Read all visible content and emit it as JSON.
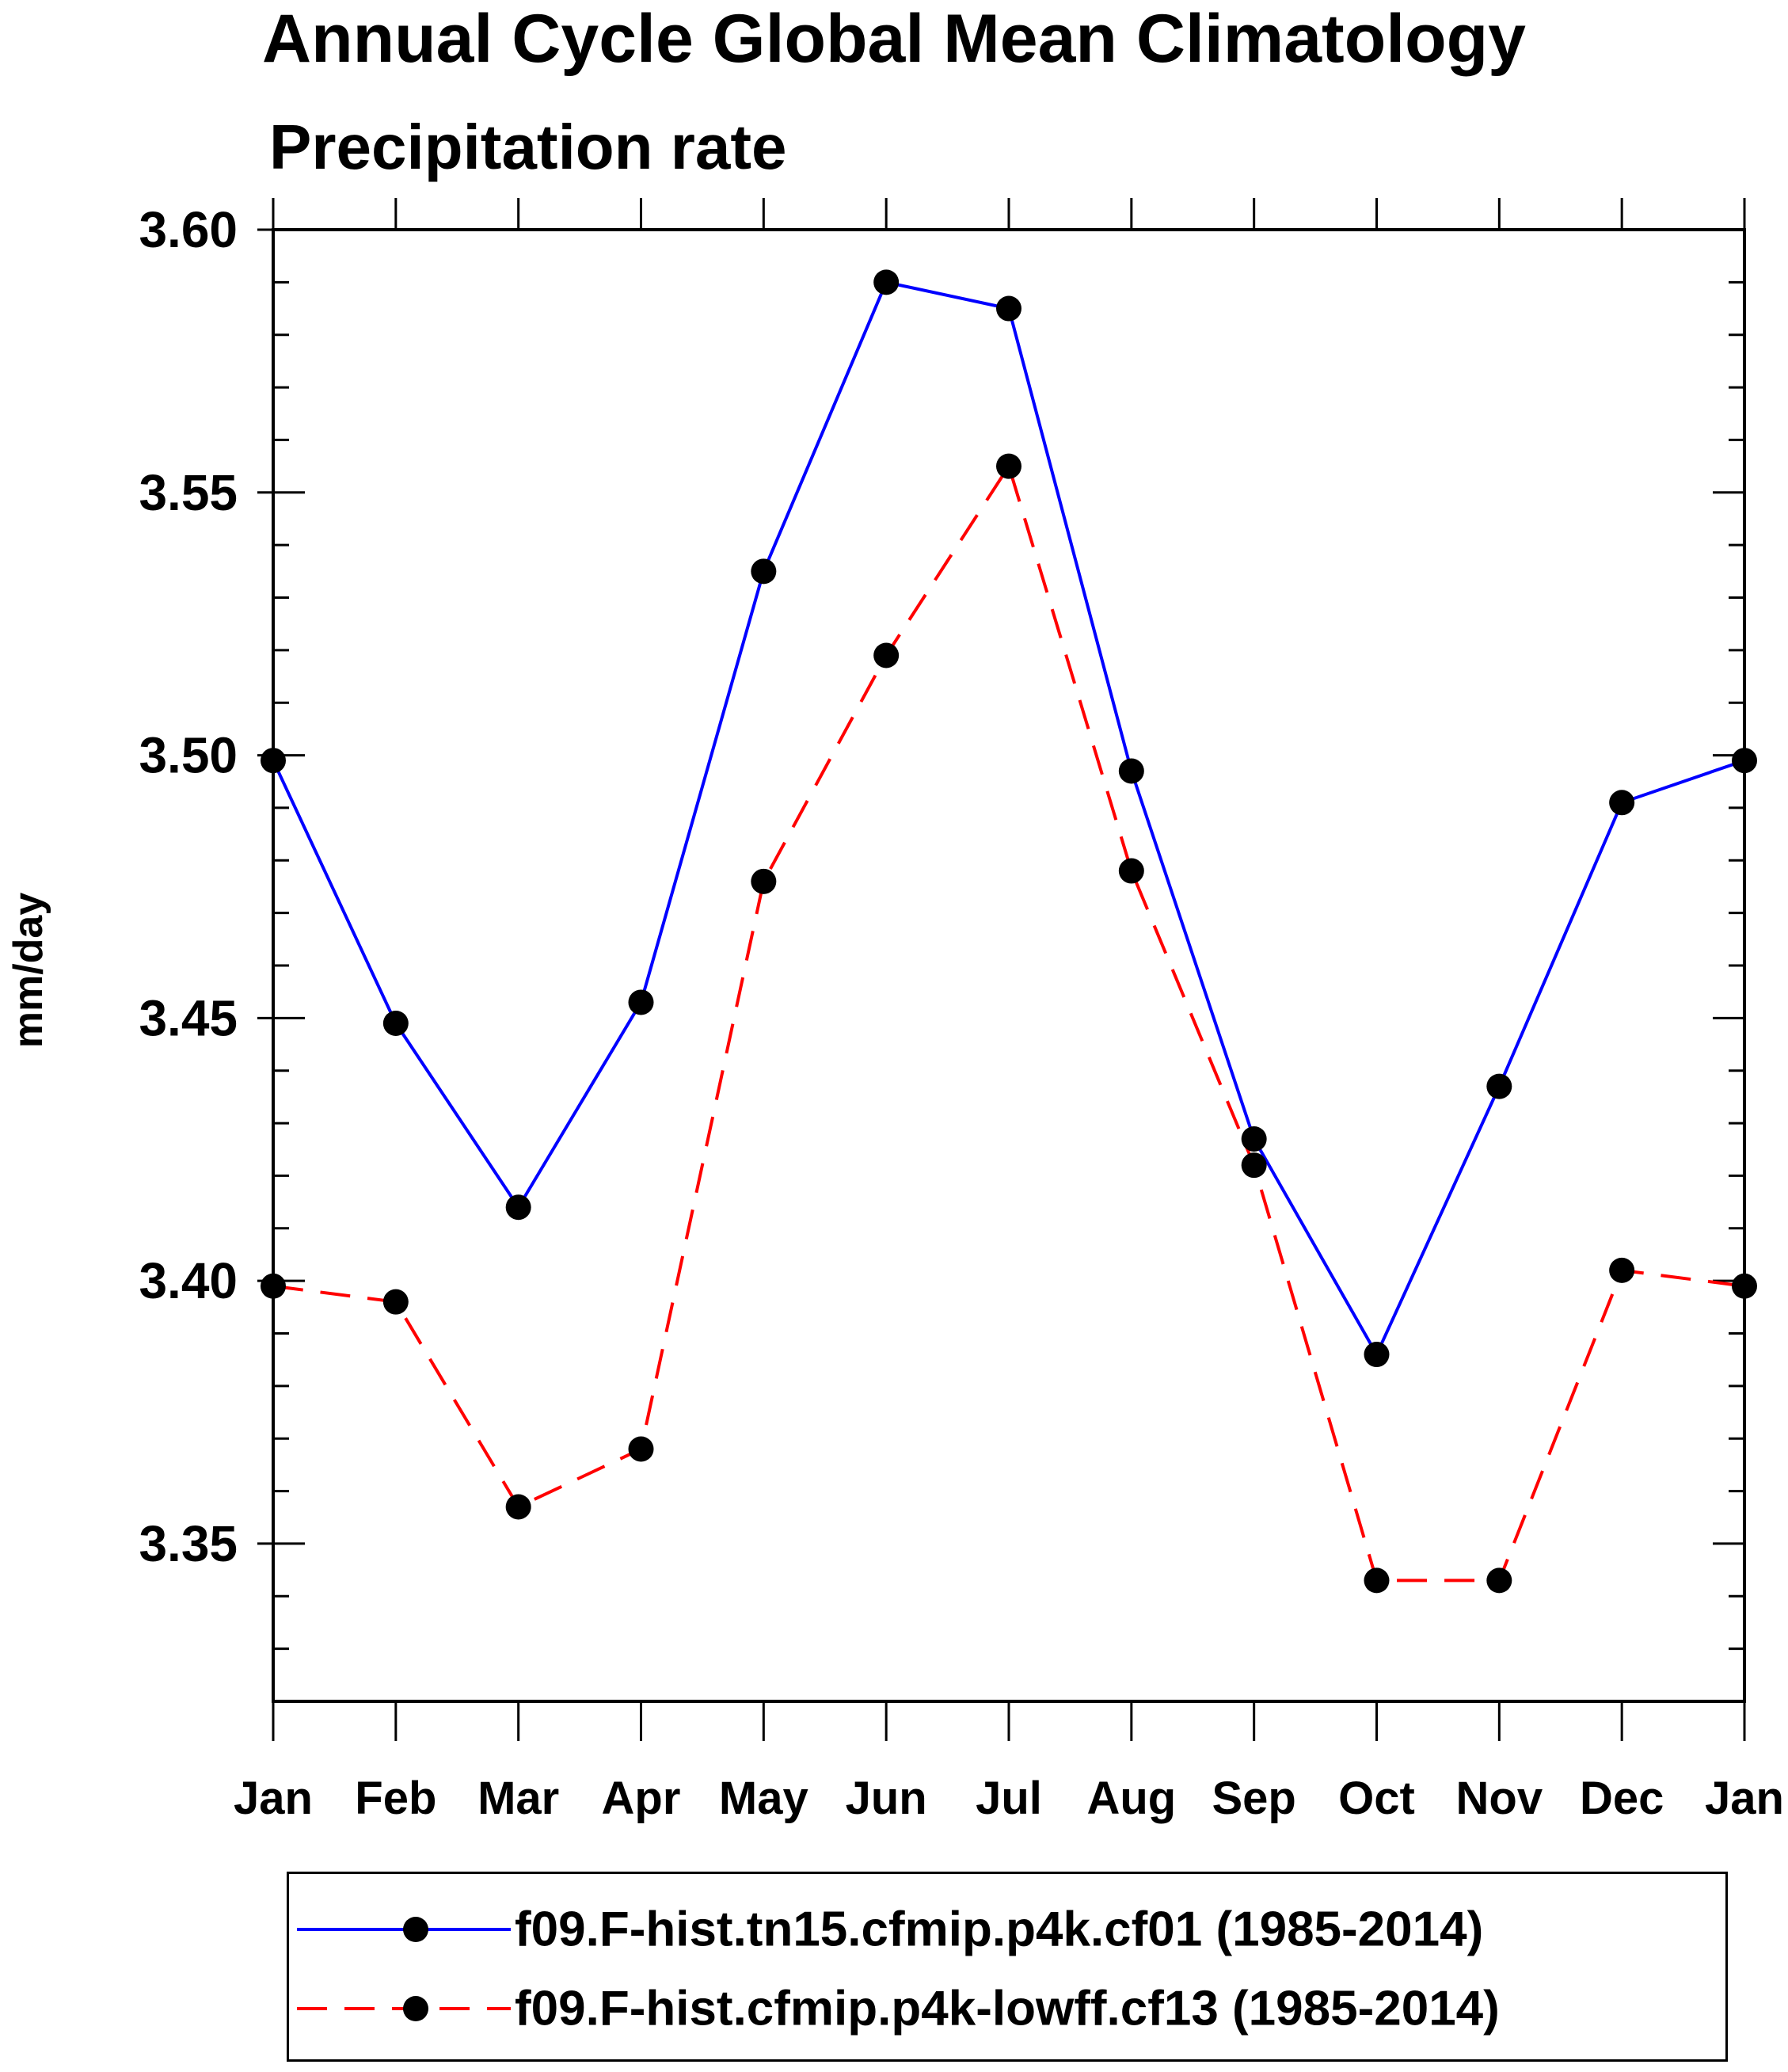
{
  "chart_data": {
    "type": "line",
    "title": "Annual Cycle Global Mean Climatology",
    "subtitle": "Precipitation rate",
    "xlabel": "",
    "ylabel": "mm/day",
    "categories": [
      "Jan",
      "Feb",
      "Mar",
      "Apr",
      "May",
      "Jun",
      "Jul",
      "Aug",
      "Sep",
      "Oct",
      "Nov",
      "Dec",
      "Jan"
    ],
    "ylim": [
      3.32,
      3.6
    ],
    "yticks": [
      "3.35",
      "3.40",
      "3.45",
      "3.50",
      "3.55",
      "3.60"
    ],
    "ytick_values": [
      3.35,
      3.4,
      3.45,
      3.5,
      3.55,
      3.6
    ],
    "grid": false,
    "legend_position": "bottom",
    "series": [
      {
        "name": "f09.F-hist.tn15.cfmip.p4k.cf01 (1985-2014)",
        "color": "#0000ff",
        "line_style": "solid",
        "marker": "circle",
        "values": [
          3.499,
          3.449,
          3.414,
          3.453,
          3.535,
          3.59,
          3.585,
          3.497,
          3.427,
          3.386,
          3.437,
          3.491,
          3.499
        ]
      },
      {
        "name": "f09.F-hist.cfmip.p4k-lowff.cf13 (1985-2014)",
        "color": "#ff0000",
        "line_style": "dashed",
        "marker": "circle",
        "values": [
          3.399,
          3.396,
          3.357,
          3.368,
          3.476,
          3.519,
          3.555,
          3.478,
          3.422,
          3.343,
          3.343,
          3.402,
          3.399
        ]
      }
    ]
  }
}
